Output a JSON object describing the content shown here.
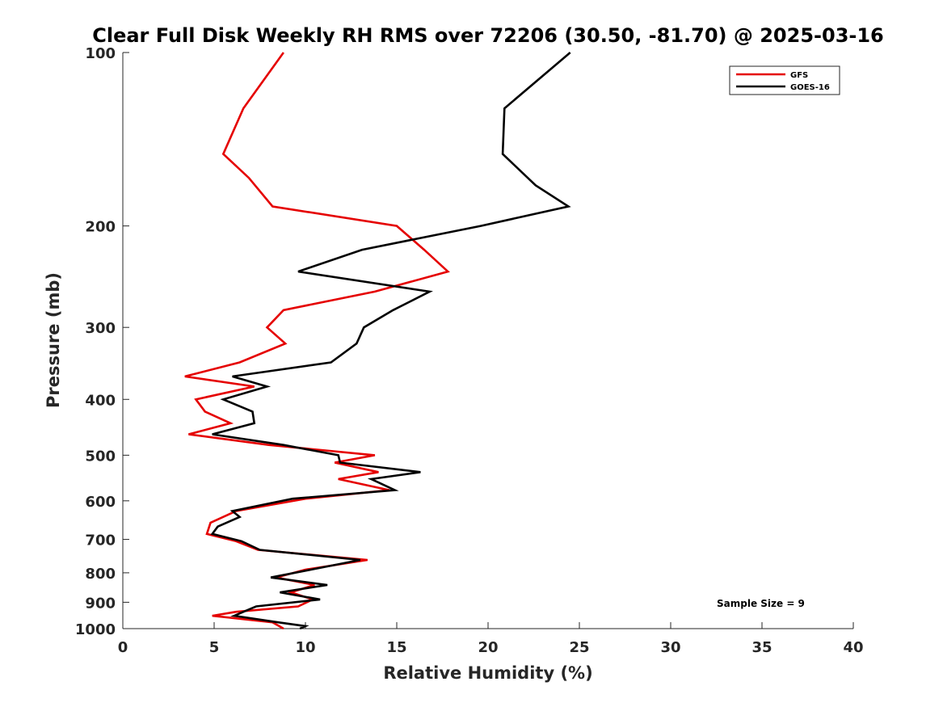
{
  "chart_data": {
    "type": "line",
    "title": "Clear Full Disk Weekly RH RMS over 72206 (30.50, -81.70) @ 2025-03-16",
    "xlabel": "Relative Humidity (%)",
    "ylabel": "Pressure (mb)",
    "xlim": [
      0,
      40
    ],
    "ylim": [
      100,
      1000
    ],
    "y_scale": "log",
    "y_reversed": true,
    "x_ticks": [
      0,
      5,
      10,
      15,
      20,
      25,
      30,
      35,
      40
    ],
    "y_ticks": [
      100,
      200,
      300,
      400,
      500,
      600,
      700,
      800,
      900,
      1000
    ],
    "grid": false,
    "legend_position": "top-right",
    "annotation": "Sample Size = 9",
    "series": [
      {
        "name": "GFS",
        "color": "#e50000",
        "points": [
          [
            8.8,
            100
          ],
          [
            6.6,
            125
          ],
          [
            5.5,
            150
          ],
          [
            6.9,
            165
          ],
          [
            8.2,
            185
          ],
          [
            15.0,
            200
          ],
          [
            16.5,
            220
          ],
          [
            17.8,
            240
          ],
          [
            13.8,
            260
          ],
          [
            8.8,
            280
          ],
          [
            7.9,
            300
          ],
          [
            8.9,
            320
          ],
          [
            6.4,
            345
          ],
          [
            3.4,
            365
          ],
          [
            7.2,
            380
          ],
          [
            4.0,
            400
          ],
          [
            4.5,
            420
          ],
          [
            5.9,
            440
          ],
          [
            3.6,
            460
          ],
          [
            8.0,
            480
          ],
          [
            13.8,
            500
          ],
          [
            11.6,
            515
          ],
          [
            14.0,
            535
          ],
          [
            11.8,
            550
          ],
          [
            14.6,
            575
          ],
          [
            10.0,
            595
          ],
          [
            6.2,
            625
          ],
          [
            4.8,
            655
          ],
          [
            4.6,
            685
          ],
          [
            6.2,
            705
          ],
          [
            7.4,
            730
          ],
          [
            13.4,
            760
          ],
          [
            10.0,
            790
          ],
          [
            8.4,
            815
          ],
          [
            10.5,
            840
          ],
          [
            9.2,
            865
          ],
          [
            10.4,
            890
          ],
          [
            9.6,
            915
          ],
          [
            6.2,
            935
          ],
          [
            4.9,
            950
          ],
          [
            8.2,
            975
          ],
          [
            8.8,
            1000
          ]
        ]
      },
      {
        "name": "GOES-16",
        "color": "#000000",
        "points": [
          [
            24.5,
            100
          ],
          [
            20.9,
            125
          ],
          [
            20.8,
            150
          ],
          [
            22.6,
            170
          ],
          [
            24.4,
            185
          ],
          [
            19.6,
            200
          ],
          [
            13.1,
            220
          ],
          [
            9.6,
            240
          ],
          [
            16.8,
            260
          ],
          [
            14.8,
            280
          ],
          [
            13.2,
            300
          ],
          [
            12.8,
            320
          ],
          [
            11.4,
            345
          ],
          [
            6.0,
            365
          ],
          [
            7.9,
            380
          ],
          [
            5.5,
            400
          ],
          [
            7.1,
            420
          ],
          [
            7.2,
            440
          ],
          [
            4.9,
            460
          ],
          [
            8.8,
            480
          ],
          [
            11.8,
            500
          ],
          [
            11.9,
            515
          ],
          [
            16.3,
            535
          ],
          [
            13.6,
            550
          ],
          [
            14.9,
            575
          ],
          [
            9.3,
            595
          ],
          [
            6.0,
            625
          ],
          [
            6.4,
            640
          ],
          [
            5.2,
            665
          ],
          [
            4.9,
            685
          ],
          [
            6.5,
            705
          ],
          [
            7.5,
            730
          ],
          [
            13.0,
            760
          ],
          [
            10.3,
            790
          ],
          [
            8.1,
            815
          ],
          [
            11.2,
            840
          ],
          [
            8.6,
            865
          ],
          [
            10.8,
            890
          ],
          [
            7.3,
            915
          ],
          [
            6.6,
            935
          ],
          [
            6.1,
            950
          ],
          [
            8.5,
            975
          ],
          [
            10.0,
            990
          ],
          [
            9.7,
            1000
          ]
        ]
      }
    ]
  }
}
